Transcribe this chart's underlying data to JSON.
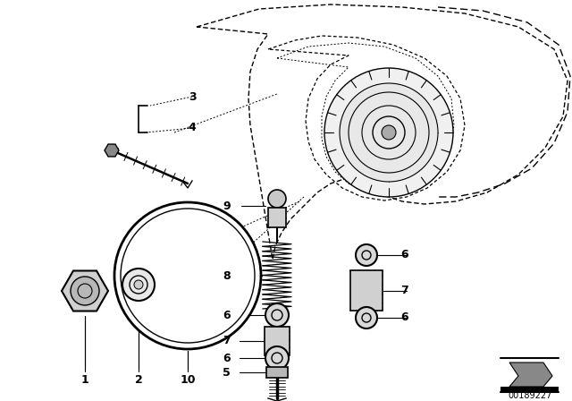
{
  "bg_color": "#ffffff",
  "line_color": "#000000",
  "diagram_number": "00189227",
  "housing_color": "#ffffff",
  "part_fill": "#e0e0e0",
  "label_fontsize": 9,
  "label_bold": true
}
